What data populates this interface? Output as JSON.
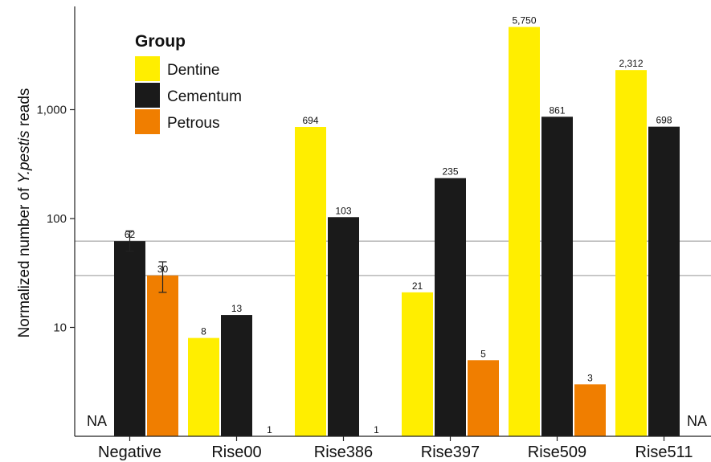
{
  "chart_data": {
    "type": "bar",
    "ylabel_parts": [
      "Normalized number of ",
      "Y.pestis",
      " reads"
    ],
    "yscale": "log",
    "ylim": [
      1,
      8000
    ],
    "yticks": [
      10,
      100,
      1000
    ],
    "ytick_labels": [
      "10",
      "100",
      "1,000"
    ],
    "categories": [
      "Negative",
      "Rise00",
      "Rise386",
      "Rise397",
      "Rise509",
      "Rise511"
    ],
    "legend_title": "Group",
    "legend_position": "top-left",
    "series": [
      {
        "name": "Dentine",
        "color": "#FFEE00",
        "values": [
          null,
          8,
          694,
          21,
          5750,
          2312
        ],
        "labels": [
          "",
          "8",
          "694",
          "21",
          "5,750",
          "2,312"
        ]
      },
      {
        "name": "Cementum",
        "color": "#1A1A1A",
        "values": [
          62,
          13,
          103,
          235,
          861,
          698
        ],
        "labels": [
          "62",
          "13",
          "103",
          "235",
          "861",
          "698"
        ]
      },
      {
        "name": "Petrous",
        "color": "#F07E00",
        "values": [
          30,
          1,
          1,
          5,
          3,
          null
        ],
        "labels": [
          "30",
          "1",
          "1",
          "5",
          "3",
          ""
        ]
      }
    ],
    "error_bars": [
      {
        "category": "Negative",
        "series": "Cementum",
        "low": 50,
        "high": 77
      },
      {
        "category": "Negative",
        "series": "Petrous",
        "low": 21,
        "high": 40
      }
    ],
    "reference_lines": [
      62,
      30
    ],
    "missing_labels": [
      {
        "category": "Negative",
        "series": "Dentine",
        "text": "NA"
      },
      {
        "category": "Rise511",
        "series": "Petrous",
        "text": "NA"
      }
    ],
    "grid": false
  }
}
